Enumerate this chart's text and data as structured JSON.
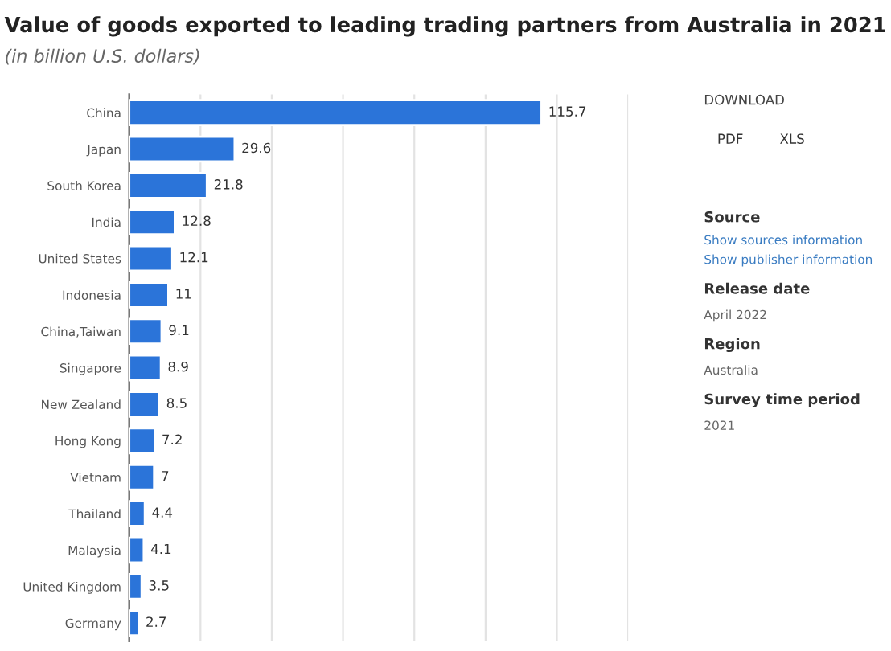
{
  "chart_data": {
    "type": "bar",
    "orientation": "horizontal",
    "title": "Value of goods exported to leading trading partners from Australia in 2021",
    "subtitle": "(in billion U.S. dollars)",
    "categories": [
      "China",
      "Japan",
      "South Korea",
      "India",
      "United States",
      "Indonesia",
      "China,Taiwan",
      "Singapore",
      "New Zealand",
      "Hong Kong",
      "Vietnam",
      "Thailand",
      "Malaysia",
      "United Kingdom",
      "Germany"
    ],
    "values": [
      115.7,
      29.6,
      21.8,
      12.8,
      12.1,
      11,
      9.1,
      8.9,
      8.5,
      7.2,
      7,
      4.4,
      4.1,
      3.5,
      2.7
    ],
    "color": "#2b74d9",
    "data_labels": true,
    "xlim": [
      0,
      140
    ],
    "xticks": [
      {
        "value": 0,
        "label": null
      },
      {
        "value": 20,
        "label": null
      },
      {
        "value": 40,
        "label": null
      },
      {
        "value": 60,
        "label": null
      },
      {
        "value": 80,
        "label": null
      },
      {
        "value": 100,
        "label": null
      },
      {
        "value": 120,
        "label": null
      },
      {
        "value": 140,
        "label": null
      }
    ],
    "grid": "x",
    "tick_labels": "y",
    "annotations": [
      "DOWNLOAD",
      "PDF",
      "XLS",
      "Source",
      "Show sources information",
      "Show publisher information",
      "Release date",
      "April 2022",
      "Region",
      "Australia",
      "Survey time period",
      "2021"
    ]
  }
}
